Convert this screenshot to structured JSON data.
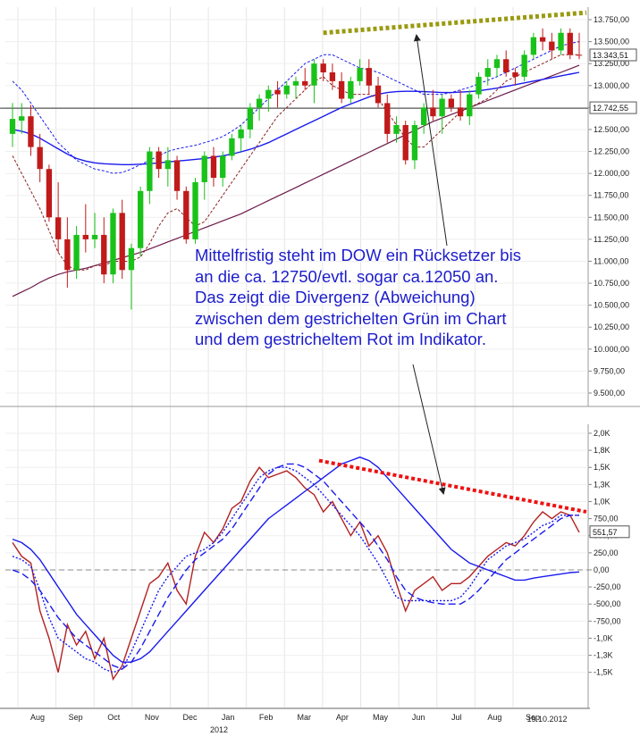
{
  "chart_data": [
    {
      "type": "candlestick",
      "ylim": [
        9500,
        13750
      ],
      "y_ticks": [
        "9.500,00",
        "9.750,00",
        "10.000,00",
        "10.250,00",
        "10.500,00",
        "10.750,00",
        "11.000,00",
        "11.250,00",
        "11.500,00",
        "11.750,00",
        "12.000,00",
        "12.250,00",
        "12.500,00",
        "12.750,00",
        "13.000,00",
        "13.250,00",
        "13.500,00",
        "13.750,00"
      ],
      "y_tick_values": [
        9500,
        9750,
        10000,
        10250,
        10500,
        10750,
        11000,
        11250,
        11500,
        11750,
        12000,
        12250,
        12500,
        12750,
        13000,
        13250,
        13500,
        13750
      ],
      "last_price_label": "13.343,51",
      "last_price": 13343.51,
      "horizontal_level_label": "12.742,55",
      "horizontal_level": 12742.55,
      "candles": [
        {
          "o": 12450,
          "h": 12800,
          "l": 12300,
          "c": 12620
        },
        {
          "o": 12600,
          "h": 12800,
          "l": 12450,
          "c": 12650
        },
        {
          "o": 12650,
          "h": 12780,
          "l": 12200,
          "c": 12300
        },
        {
          "o": 12300,
          "h": 12450,
          "l": 11900,
          "c": 12050
        },
        {
          "o": 12050,
          "h": 12100,
          "l": 11450,
          "c": 11500
        },
        {
          "o": 11500,
          "h": 11900,
          "l": 11100,
          "c": 11250
        },
        {
          "o": 11250,
          "h": 11500,
          "l": 10700,
          "c": 10900
        },
        {
          "o": 10900,
          "h": 11400,
          "l": 10800,
          "c": 11300
        },
        {
          "o": 11300,
          "h": 11650,
          "l": 11100,
          "c": 11250
        },
        {
          "o": 11250,
          "h": 11550,
          "l": 11150,
          "c": 11300
        },
        {
          "o": 11300,
          "h": 11500,
          "l": 10750,
          "c": 10850
        },
        {
          "o": 10850,
          "h": 11600,
          "l": 10750,
          "c": 11550
        },
        {
          "o": 11550,
          "h": 11700,
          "l": 10800,
          "c": 10900
        },
        {
          "o": 10900,
          "h": 11200,
          "l": 10450,
          "c": 11150
        },
        {
          "o": 11150,
          "h": 11850,
          "l": 11050,
          "c": 11800
        },
        {
          "o": 11800,
          "h": 12300,
          "l": 11650,
          "c": 12250
        },
        {
          "o": 12250,
          "h": 12300,
          "l": 11950,
          "c": 12050
        },
        {
          "o": 12050,
          "h": 12300,
          "l": 11850,
          "c": 12150
        },
        {
          "o": 12150,
          "h": 12200,
          "l": 11700,
          "c": 11800
        },
        {
          "o": 11800,
          "h": 11850,
          "l": 11200,
          "c": 11250
        },
        {
          "o": 11250,
          "h": 11950,
          "l": 11200,
          "c": 11900
        },
        {
          "o": 11900,
          "h": 12250,
          "l": 11700,
          "c": 12200
        },
        {
          "o": 12200,
          "h": 12300,
          "l": 11850,
          "c": 11950
        },
        {
          "o": 11950,
          "h": 12250,
          "l": 11850,
          "c": 12200
        },
        {
          "o": 12200,
          "h": 12450,
          "l": 12150,
          "c": 12400
        },
        {
          "o": 12400,
          "h": 12550,
          "l": 12250,
          "c": 12500
        },
        {
          "o": 12500,
          "h": 12800,
          "l": 12400,
          "c": 12750
        },
        {
          "o": 12750,
          "h": 12900,
          "l": 12600,
          "c": 12850
        },
        {
          "o": 12850,
          "h": 13000,
          "l": 12700,
          "c": 12950
        },
        {
          "o": 12950,
          "h": 13050,
          "l": 12750,
          "c": 12900
        },
        {
          "o": 12900,
          "h": 13050,
          "l": 12850,
          "c": 13000
        },
        {
          "o": 13000,
          "h": 13100,
          "l": 12850,
          "c": 13050
        },
        {
          "o": 13050,
          "h": 13200,
          "l": 12950,
          "c": 13000
        },
        {
          "o": 13000,
          "h": 13300,
          "l": 12800,
          "c": 13250
        },
        {
          "o": 13250,
          "h": 13300,
          "l": 13050,
          "c": 13150
        },
        {
          "o": 13150,
          "h": 13250,
          "l": 12950,
          "c": 13050
        },
        {
          "o": 13050,
          "h": 13150,
          "l": 12800,
          "c": 12850
        },
        {
          "o": 12850,
          "h": 13100,
          "l": 12800,
          "c": 13050
        },
        {
          "o": 13050,
          "h": 13300,
          "l": 13000,
          "c": 13200
        },
        {
          "o": 13200,
          "h": 13300,
          "l": 12900,
          "c": 13000
        },
        {
          "o": 13000,
          "h": 13100,
          "l": 12750,
          "c": 12800
        },
        {
          "o": 12800,
          "h": 12900,
          "l": 12350,
          "c": 12450
        },
        {
          "o": 12450,
          "h": 12650,
          "l": 12350,
          "c": 12550
        },
        {
          "o": 12550,
          "h": 12600,
          "l": 12100,
          "c": 12150
        },
        {
          "o": 12150,
          "h": 12600,
          "l": 12050,
          "c": 12550
        },
        {
          "o": 12550,
          "h": 12800,
          "l": 12450,
          "c": 12750
        },
        {
          "o": 12750,
          "h": 12950,
          "l": 12600,
          "c": 12650
        },
        {
          "o": 12650,
          "h": 12900,
          "l": 12450,
          "c": 12850
        },
        {
          "o": 12850,
          "h": 12900,
          "l": 12700,
          "c": 12750
        },
        {
          "o": 12750,
          "h": 12950,
          "l": 12600,
          "c": 12650
        },
        {
          "o": 12650,
          "h": 12950,
          "l": 12550,
          "c": 12900
        },
        {
          "o": 12900,
          "h": 13150,
          "l": 12850,
          "c": 13100
        },
        {
          "o": 13100,
          "h": 13300,
          "l": 13000,
          "c": 13200
        },
        {
          "o": 13200,
          "h": 13350,
          "l": 13100,
          "c": 13300
        },
        {
          "o": 13300,
          "h": 13400,
          "l": 13100,
          "c": 13150
        },
        {
          "o": 13150,
          "h": 13200,
          "l": 13000,
          "c": 13100
        },
        {
          "o": 13100,
          "h": 13400,
          "l": 13050,
          "c": 13350
        },
        {
          "o": 13350,
          "h": 13600,
          "l": 13300,
          "c": 13550
        },
        {
          "o": 13550,
          "h": 13650,
          "l": 13400,
          "c": 13500
        },
        {
          "o": 13500,
          "h": 13600,
          "l": 13300,
          "c": 13400
        },
        {
          "o": 13400,
          "h": 13650,
          "l": 13350,
          "c": 13600
        },
        {
          "o": 13600,
          "h": 13650,
          "l": 13300,
          "c": 13350
        },
        {
          "o": 13350,
          "h": 13600,
          "l": 13300,
          "c": 13343
        }
      ],
      "sma_blue": [
        12500,
        12480,
        12450,
        12400,
        12340,
        12280,
        12220,
        12170,
        12140,
        12120,
        12110,
        12105,
        12100,
        12100,
        12105,
        12110,
        12120,
        12130,
        12140,
        12150,
        12160,
        12170,
        12185,
        12200,
        12220,
        12245,
        12275,
        12310,
        12350,
        12400,
        12450,
        12500,
        12550,
        12600,
        12650,
        12700,
        12750,
        12790,
        12830,
        12870,
        12900,
        12920,
        12930,
        12935,
        12935,
        12930,
        12925,
        12920,
        12920,
        12925,
        12930,
        12940,
        12955,
        12970,
        12990,
        13010,
        13030,
        13050,
        13070,
        13090,
        13110,
        13130,
        13150
      ],
      "sma_purple": [
        10600,
        10650,
        10700,
        10760,
        10810,
        10850,
        10880,
        10900,
        10920,
        10950,
        10980,
        11010,
        11040,
        11070,
        11100,
        11140,
        11180,
        11220,
        11260,
        11300,
        11340,
        11380,
        11420,
        11460,
        11500,
        11540,
        11590,
        11640,
        11690,
        11740,
        11790,
        11840,
        11890,
        11940,
        11990,
        12040,
        12090,
        12140,
        12190,
        12240,
        12290,
        12340,
        12390,
        12440,
        12490,
        12540,
        12590,
        12630,
        12670,
        12710,
        12750,
        12790,
        12830,
        12870,
        12910,
        12950,
        12990,
        13030,
        13070,
        13110,
        13150,
        13190,
        13230
      ],
      "envelope_upper_blue": [
        13050,
        12950,
        12800,
        12650,
        12500,
        12350,
        12250,
        12150,
        12100,
        12050,
        12030,
        12000,
        12010,
        12050,
        12100,
        12150,
        12200,
        12250,
        12280,
        12300,
        12320,
        12350,
        12380,
        12420,
        12480,
        12550,
        12650,
        12750,
        12850,
        12950,
        13050,
        13150,
        13250,
        13300,
        13350,
        13350,
        13300,
        13250,
        13200,
        13180,
        13150,
        13100,
        13050,
        13000,
        12950,
        12900,
        12900,
        12900,
        12920,
        12950,
        12980,
        13020,
        13060,
        13100,
        13150,
        13200,
        13250,
        13300,
        13350,
        13400,
        13450,
        13480,
        13500
      ],
      "envelope_lower_red": [
        12200,
        12000,
        11800,
        11600,
        11350,
        11100,
        10950,
        10900,
        10900,
        10950,
        10950,
        11000,
        11000,
        11000,
        11050,
        11200,
        11400,
        11550,
        11600,
        11500,
        11400,
        11450,
        11600,
        11750,
        11900,
        12050,
        12200,
        12350,
        12500,
        12650,
        12750,
        12850,
        12950,
        13050,
        13100,
        13000,
        12950,
        12900,
        12900,
        12900,
        12850,
        12700,
        12550,
        12400,
        12300,
        12300,
        12400,
        12500,
        12600,
        12700,
        12750,
        12800,
        12850,
        12950,
        13050,
        13100,
        13150,
        13200,
        13250,
        13300,
        13350,
        13350,
        13350
      ],
      "trendline_dotted": {
        "from_index": 34,
        "from_value": 13600,
        "to_index": 62,
        "to_value": 13830
      }
    },
    {
      "type": "line",
      "ylim": [
        -1700,
        2000
      ],
      "y_ticks": [
        "-1,5K",
        "-1,3K",
        "-1,0K",
        "-750,00",
        "-500,00",
        "-250,00",
        "0,00",
        "250,00",
        "500,00",
        "750,00",
        "1,0K",
        "1,3K",
        "1,5K",
        "1,8K",
        "2,0K"
      ],
      "y_tick_values": [
        -1500,
        -1250,
        -1000,
        -750,
        -500,
        -250,
        0,
        250,
        500,
        750,
        1000,
        1250,
        1500,
        1750,
        2000
      ],
      "last_value_label": "551,57",
      "last_value": 551.57,
      "series": [
        {
          "color": "#b22222",
          "values": [
            400,
            200,
            100,
            -600,
            -1000,
            -1500,
            -800,
            -1100,
            -900,
            -1300,
            -1000,
            -1600,
            -1400,
            -1000,
            -600,
            -200,
            -100,
            100,
            -300,
            -500,
            200,
            550,
            400,
            600,
            900,
            1000,
            1300,
            1500,
            1350,
            1400,
            1450,
            1350,
            1200,
            1100,
            850,
            1000,
            750,
            500,
            700,
            350,
            500,
            250,
            -200,
            -600,
            -300,
            -200,
            -100,
            -300,
            -200,
            -200,
            -100,
            50,
            200,
            300,
            400,
            350,
            500,
            700,
            850,
            750,
            850,
            800,
            550
          ]
        },
        {
          "color": "#1a1aee",
          "dash": "2,2",
          "values": [
            200,
            150,
            50,
            -300,
            -700,
            -1000,
            -1100,
            -1200,
            -1300,
            -1350,
            -1450,
            -1500,
            -1450,
            -1200,
            -900,
            -600,
            -300,
            -100,
            50,
            200,
            250,
            300,
            400,
            550,
            750,
            950,
            1150,
            1350,
            1450,
            1500,
            1500,
            1450,
            1350,
            1250,
            1100,
            950,
            800,
            650,
            500,
            300,
            100,
            -150,
            -400,
            -450,
            -450,
            -450,
            -450,
            -450,
            -450,
            -400,
            -250,
            -50,
            150,
            250,
            350,
            400,
            450,
            550,
            650,
            700,
            800,
            800,
            800
          ]
        },
        {
          "color": "#1a1aee",
          "dash": "8,4",
          "values": [
            0,
            -50,
            -150,
            -300,
            -500,
            -700,
            -850,
            -1000,
            -1100,
            -1200,
            -1300,
            -1400,
            -1450,
            -1350,
            -1150,
            -900,
            -650,
            -400,
            -200,
            0,
            150,
            250,
            350,
            450,
            600,
            800,
            1000,
            1200,
            1400,
            1500,
            1550,
            1550,
            1500,
            1400,
            1300,
            1150,
            1000,
            850,
            700,
            550,
            350,
            150,
            -100,
            -300,
            -400,
            -450,
            -480,
            -500,
            -500,
            -500,
            -420,
            -300,
            -150,
            0,
            150,
            250,
            350,
            450,
            550,
            650,
            750,
            800,
            800
          ]
        },
        {
          "color": "#1a1aee",
          "values": [
            450,
            400,
            300,
            150,
            -50,
            -250,
            -450,
            -650,
            -800,
            -950,
            -1100,
            -1250,
            -1350,
            -1350,
            -1300,
            -1200,
            -1050,
            -900,
            -750,
            -600,
            -450,
            -300,
            -150,
            0,
            150,
            300,
            450,
            600,
            750,
            850,
            950,
            1050,
            1150,
            1250,
            1350,
            1450,
            1550,
            1600,
            1650,
            1600,
            1500,
            1350,
            1200,
            1050,
            900,
            750,
            600,
            450,
            300,
            200,
            100,
            50,
            0,
            -50,
            -100,
            -150,
            -150,
            -120,
            -100,
            -80,
            -60,
            -40,
            -30
          ]
        }
      ],
      "trendline_dotted": {
        "from_index": 22,
        "from_value": 1600,
        "to_index": 62,
        "to_value": 850
      }
    }
  ],
  "x_axis": {
    "months": [
      "Aug",
      "Sep",
      "Oct",
      "Nov",
      "Dec",
      "Jan",
      "Feb",
      "Mar",
      "Apr",
      "May",
      "Jun",
      "Jul",
      "Aug",
      "Sep"
    ],
    "year_label": "2012",
    "date_label": "19.10.2012"
  },
  "annotation": {
    "lines": [
      "Mittelfristig steht im  DOW ein Rücksetzer bis",
      "an die ca. 12750/evtl. sogar ca.12050 an.",
      "Das zeigt die Divergenz (Abweichung)",
      "zwischen dem gestrichelten Grün im Chart",
      "und dem gestricheltem Rot im Indikator."
    ]
  },
  "colors": {
    "bull": "#19c219",
    "bear": "#c01a1a",
    "blue": "#1a1aee",
    "purple": "#6b1a4a",
    "olive_dots": "#9a9a12",
    "red_dots": "#ee1111",
    "annotation_text": "#1c1ccc"
  }
}
